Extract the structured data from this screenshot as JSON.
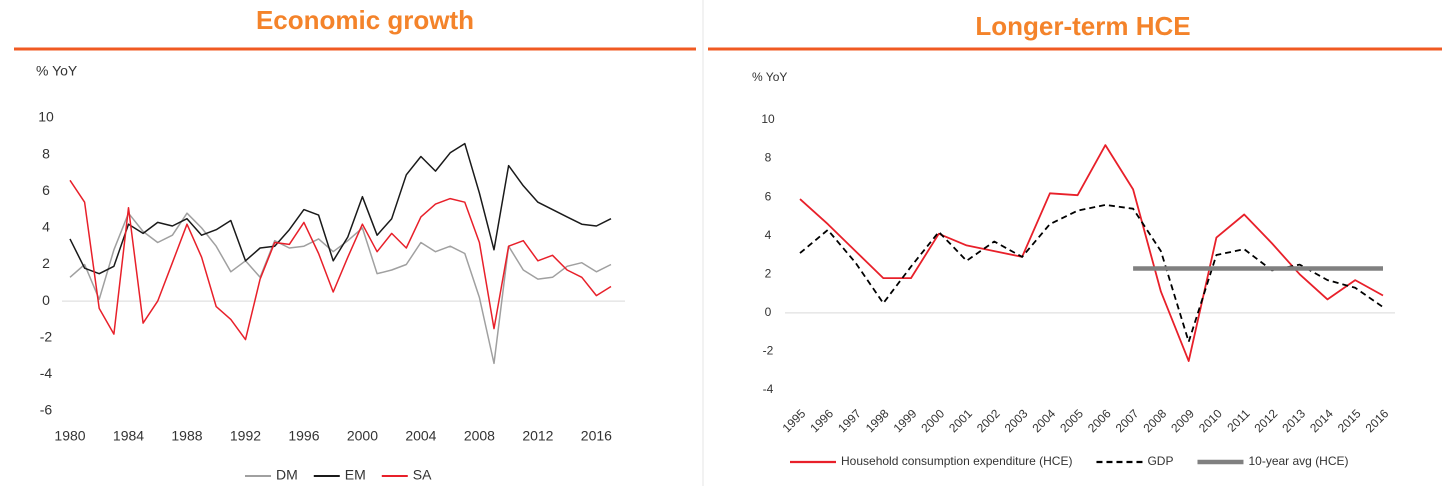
{
  "chart_data": [
    {
      "type": "line",
      "title": "Economic growth",
      "y_label": "% YoY",
      "x": [
        1980,
        1981,
        1982,
        1983,
        1984,
        1985,
        1986,
        1987,
        1988,
        1989,
        1990,
        1991,
        1992,
        1993,
        1994,
        1995,
        1996,
        1997,
        1998,
        1999,
        2000,
        2001,
        2002,
        2003,
        2004,
        2005,
        2006,
        2007,
        2008,
        2009,
        2010,
        2011,
        2012,
        2013,
        2014,
        2015,
        2016,
        2017
      ],
      "xlim": [
        1980,
        2017
      ],
      "xticks": [
        1980,
        1984,
        1988,
        1992,
        1996,
        2000,
        2004,
        2008,
        2012,
        2016
      ],
      "ylim": [
        -6,
        10
      ],
      "yticks": [
        -6,
        -4,
        -2,
        0,
        2,
        4,
        6,
        8,
        10
      ],
      "series": [
        {
          "name": "DM",
          "color": "#a0a0a0",
          "line_style": "solid",
          "values": [
            1.3,
            2.0,
            0.1,
            2.8,
            4.8,
            3.8,
            3.2,
            3.6,
            4.8,
            4.0,
            3.0,
            1.6,
            2.2,
            1.3,
            3.3,
            2.9,
            3.0,
            3.4,
            2.7,
            3.3,
            4.0,
            1.5,
            1.7,
            2.0,
            3.2,
            2.7,
            3.0,
            2.6,
            0.2,
            -3.4,
            3.0,
            1.7,
            1.2,
            1.3,
            1.9,
            2.1,
            1.6,
            2.0
          ]
        },
        {
          "name": "EM",
          "color": "#1a1a1a",
          "line_style": "solid",
          "values": [
            3.4,
            1.8,
            1.5,
            1.9,
            4.2,
            3.7,
            4.3,
            4.1,
            4.5,
            3.6,
            3.9,
            4.4,
            2.2,
            2.9,
            3.0,
            3.9,
            5.0,
            4.7,
            2.2,
            3.5,
            5.7,
            3.6,
            4.5,
            6.9,
            7.9,
            7.1,
            8.1,
            8.6,
            5.9,
            2.8,
            7.4,
            6.3,
            5.4,
            5.0,
            4.6,
            4.2,
            4.1,
            4.5
          ]
        },
        {
          "name": "SA",
          "color": "#e8202a",
          "line_style": "solid",
          "values": [
            6.6,
            5.4,
            -0.4,
            -1.8,
            5.1,
            -1.2,
            0.0,
            2.1,
            4.2,
            2.4,
            -0.3,
            -1.0,
            -2.1,
            1.2,
            3.2,
            3.1,
            4.3,
            2.6,
            0.5,
            2.4,
            4.2,
            2.7,
            3.7,
            2.9,
            4.6,
            5.3,
            5.6,
            5.4,
            3.2,
            -1.5,
            3.0,
            3.3,
            2.2,
            2.5,
            1.7,
            1.3,
            0.3,
            0.8
          ]
        }
      ]
    },
    {
      "type": "line",
      "title": "Longer-term HCE",
      "y_label": "% YoY",
      "categories": [
        "1995",
        "1996",
        "1997",
        "1998",
        "1999",
        "2000",
        "2001",
        "2002",
        "2003",
        "2004",
        "2005",
        "2006",
        "2007",
        "2008",
        "2009",
        "2010",
        "2011",
        "2012",
        "2013",
        "2014",
        "2015",
        "2016"
      ],
      "ylim": [
        -4,
        10
      ],
      "yticks": [
        -4,
        -2,
        0,
        2,
        4,
        6,
        8,
        10
      ],
      "series": [
        {
          "name": "Household consumption expenditure (HCE)",
          "color": "#e8202a",
          "line_style": "solid",
          "values": [
            5.9,
            4.6,
            3.2,
            1.8,
            1.8,
            4.1,
            3.5,
            3.2,
            2.9,
            6.2,
            6.1,
            8.7,
            6.4,
            1.1,
            -2.5,
            3.9,
            5.1,
            3.6,
            2.0,
            0.7,
            1.7,
            0.9
          ]
        },
        {
          "name": "GDP",
          "color": "#000000",
          "line_style": "dashed",
          "values": [
            3.1,
            4.3,
            2.6,
            0.5,
            2.4,
            4.2,
            2.7,
            3.7,
            2.9,
            4.6,
            5.3,
            5.6,
            5.4,
            3.2,
            -1.5,
            3.0,
            3.3,
            2.2,
            2.5,
            1.7,
            1.3,
            0.3
          ]
        },
        {
          "name": "10-year avg (HCE)",
          "color": "#808080",
          "line_style": "thick",
          "values": [
            null,
            null,
            null,
            null,
            null,
            null,
            null,
            null,
            null,
            null,
            null,
            null,
            2.3,
            2.3,
            2.3,
            2.3,
            2.3,
            2.3,
            2.3,
            2.3,
            2.3,
            2.3
          ]
        }
      ]
    }
  ]
}
